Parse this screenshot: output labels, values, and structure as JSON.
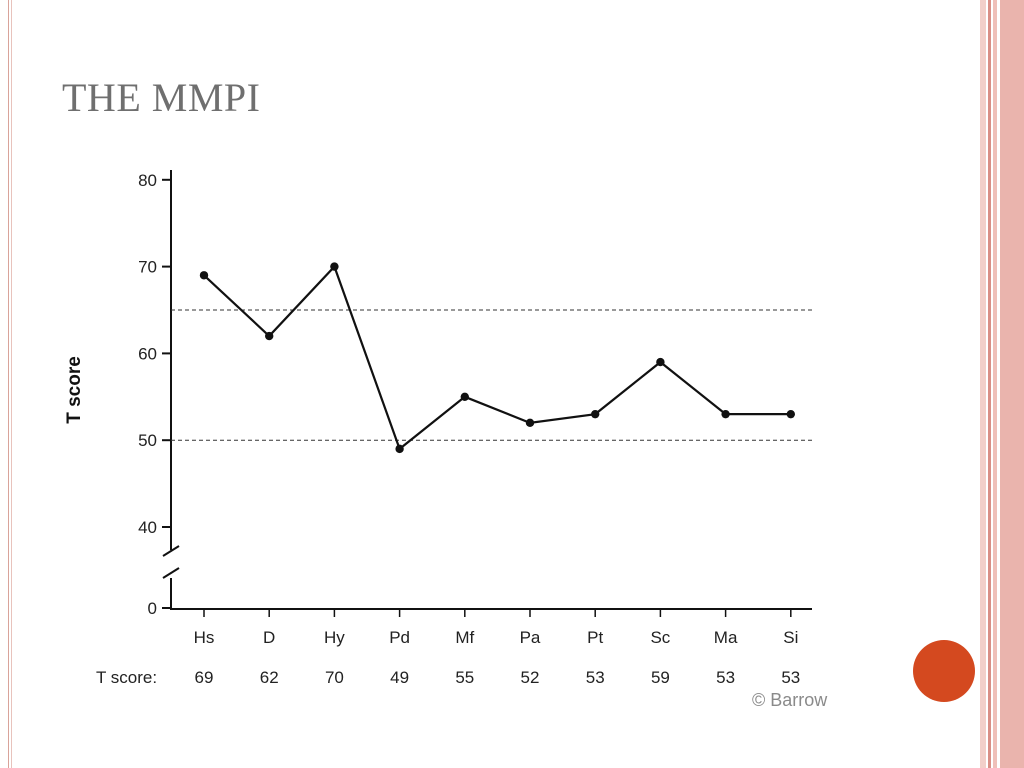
{
  "slide": {
    "title": "THE MMPI",
    "credit": "© Barrow",
    "accent_color": "#d4491f",
    "frame_color": "#e6aaa3"
  },
  "chart_data": {
    "type": "line",
    "title": "",
    "xlabel": "",
    "ylabel": "T score",
    "categories": [
      "Hs",
      "D",
      "Hy",
      "Pd",
      "Mf",
      "Pa",
      "Pt",
      "Sc",
      "Ma",
      "Si"
    ],
    "values": [
      69,
      62,
      70,
      49,
      55,
      52,
      53,
      59,
      53,
      53
    ],
    "score_row_label": "T score:",
    "score_row": [
      "69",
      "62",
      "70",
      "49",
      "55",
      "52",
      "53",
      "59",
      "53",
      "53"
    ],
    "y_ticks": [
      "80",
      "70",
      "60",
      "50",
      "40",
      "0"
    ],
    "ylim": [
      0,
      80
    ],
    "axis_break": "between 0 and 40",
    "reference_lines": [
      50,
      65
    ],
    "reference_line_style": "dashed",
    "grid": false,
    "legend": "none"
  }
}
